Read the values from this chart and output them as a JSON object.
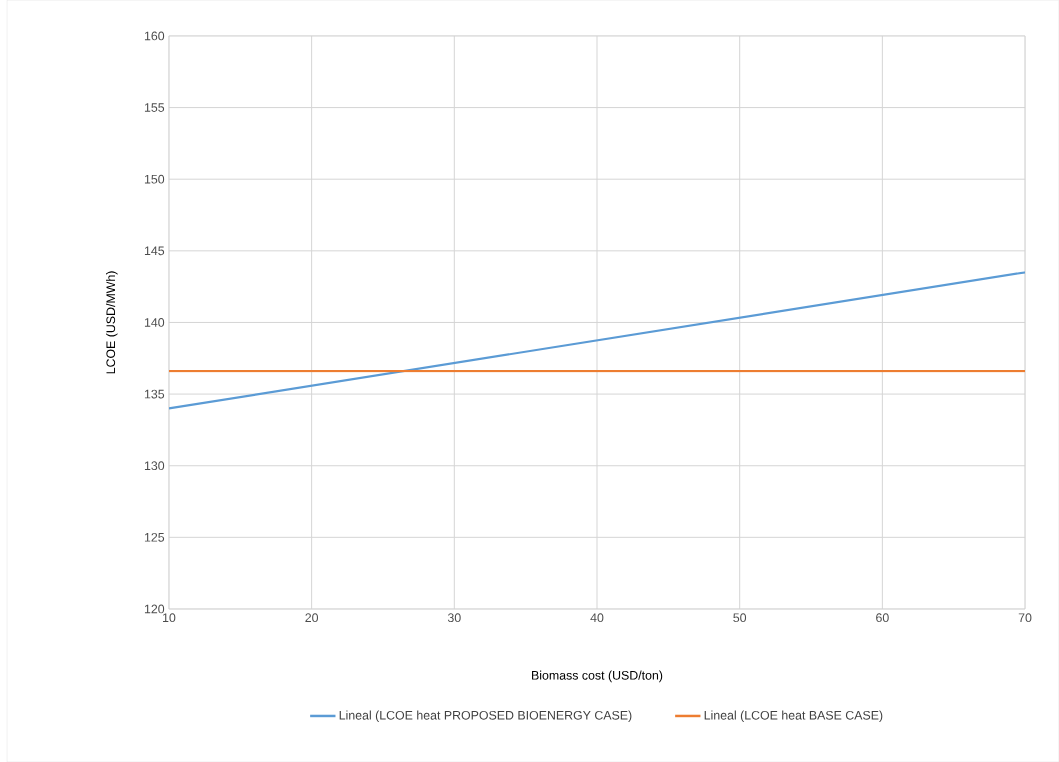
{
  "chart_data": {
    "type": "line",
    "xlabel": "Biomass cost (USD/ton)",
    "ylabel": "LCOE (USD/MWh)",
    "x": [
      10,
      70
    ],
    "series": [
      {
        "name": "Lineal (LCOE heat PROPOSED BIOENERGY CASE)",
        "color": "#5b9bd5",
        "values": [
          134.0,
          143.5
        ]
      },
      {
        "name": "Lineal (LCOE heat BASE CASE)",
        "color": "#ed7d31",
        "values": [
          136.6,
          136.6
        ]
      }
    ],
    "xlim": [
      10,
      70
    ],
    "xticks": [
      10,
      20,
      30,
      40,
      50,
      60,
      70
    ],
    "ylim": [
      120,
      160
    ],
    "yticks": [
      120,
      125,
      130,
      135,
      140,
      145,
      150,
      155,
      160
    ],
    "grid": true,
    "legend": "bottom",
    "marker": "none",
    "line_style": "solid"
  }
}
